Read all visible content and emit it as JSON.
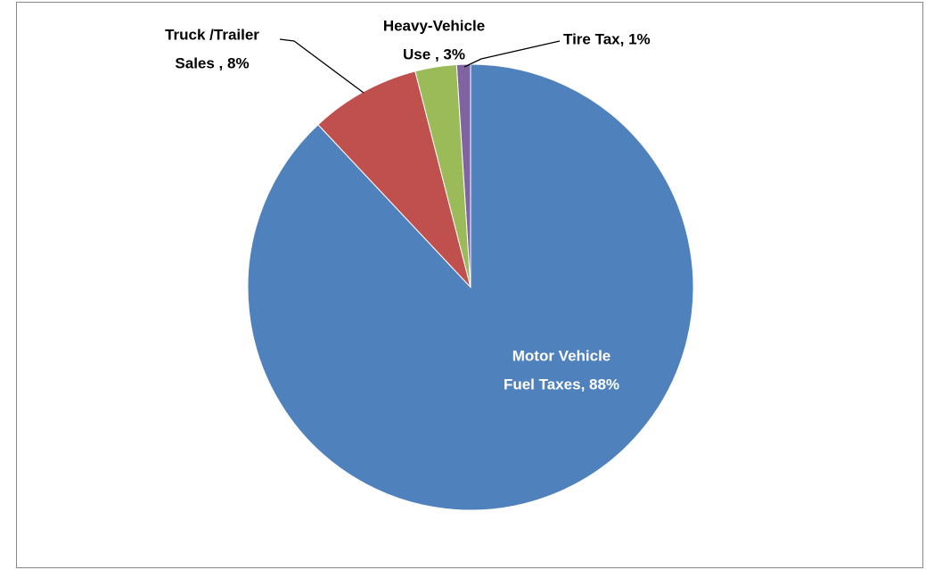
{
  "chart_data": {
    "type": "pie",
    "labels": [
      [
        "Motor Vehicle",
        "Fuel Taxes, 88%"
      ],
      [
        "Truck /Trailer",
        "Sales , 8%"
      ],
      [
        "Heavy-Vehicle",
        "Use , 3%"
      ],
      [
        "Tire Tax, 1%"
      ]
    ],
    "values": [
      88,
      8,
      3,
      1
    ],
    "colors": [
      "#4f81bd",
      "#c0504d",
      "#9bbb59",
      "#8064a2"
    ],
    "label_colors": [
      "#ffffff",
      "#000000",
      "#000000",
      "#000000"
    ]
  }
}
